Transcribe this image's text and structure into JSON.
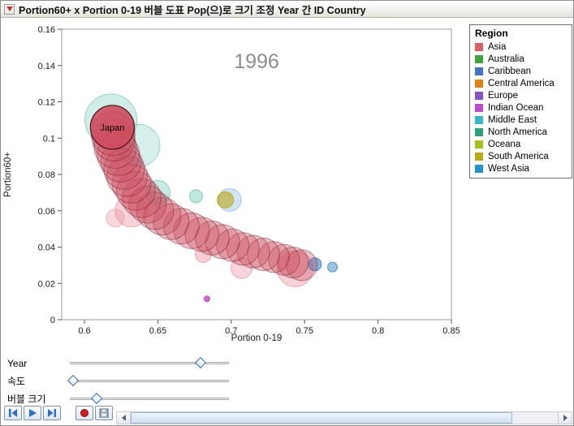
{
  "window": {
    "title": "Portion60+ x Portion 0-19 버블 도표 Pop(으)로 크기 조정 Year 간 ID Country"
  },
  "chart_data": {
    "type": "bubble",
    "year_label": "1996",
    "xlabel": "Portion 0-19",
    "ylabel": "Portion60+",
    "x_range": [
      0.5845,
      0.85
    ],
    "y_range": [
      0,
      0.16
    ],
    "x_ticks": [
      0.6,
      0.65,
      0.7,
      0.75,
      0.8,
      0.85
    ],
    "y_ticks": [
      0,
      0.02,
      0.04,
      0.06,
      0.08,
      0.1,
      0.12,
      0.14,
      0.16
    ],
    "trail": {
      "id": "Japan",
      "color": "#c9475a",
      "stroke": "#7a2233",
      "points": [
        [
          0.748,
          0.03,
          19
        ],
        [
          0.742,
          0.0315,
          19
        ],
        [
          0.736,
          0.033,
          19
        ],
        [
          0.729,
          0.0345,
          19
        ],
        [
          0.722,
          0.036,
          20
        ],
        [
          0.715,
          0.0375,
          20
        ],
        [
          0.708,
          0.039,
          20
        ],
        [
          0.701,
          0.041,
          20
        ],
        [
          0.694,
          0.043,
          21
        ],
        [
          0.687,
          0.045,
          21
        ],
        [
          0.68,
          0.047,
          21
        ],
        [
          0.673,
          0.049,
          22
        ],
        [
          0.666,
          0.0515,
          22
        ],
        [
          0.659,
          0.054,
          22
        ],
        [
          0.653,
          0.057,
          23
        ],
        [
          0.648,
          0.06,
          23
        ],
        [
          0.643,
          0.0635,
          23
        ],
        [
          0.639,
          0.067,
          24
        ],
        [
          0.635,
          0.071,
          24
        ],
        [
          0.632,
          0.075,
          24
        ],
        [
          0.629,
          0.079,
          25
        ],
        [
          0.627,
          0.083,
          25
        ],
        [
          0.625,
          0.087,
          25
        ],
        [
          0.623,
          0.091,
          26
        ],
        [
          0.621,
          0.095,
          26
        ],
        [
          0.62,
          0.099,
          26
        ],
        [
          0.6195,
          0.1025,
          27
        ]
      ]
    },
    "head": {
      "label": "Japan",
      "x": 0.619,
      "y": 0.106,
      "r": 27,
      "color": "#cf4a5c",
      "stroke": "#4a0f1c"
    },
    "bubbles": [
      {
        "x": 0.618,
        "y": 0.11,
        "r": 32,
        "color": "#49b8a6",
        "alpha": 0.25
      },
      {
        "x": 0.637,
        "y": 0.096,
        "r": 26,
        "color": "#49b8a6",
        "alpha": 0.22
      },
      {
        "x": 0.65,
        "y": 0.07,
        "r": 15,
        "color": "#49b8a6",
        "alpha": 0.3
      },
      {
        "x": 0.676,
        "y": 0.068,
        "r": 8,
        "color": "#49b8a6",
        "alpha": 0.35
      },
      {
        "x": 0.632,
        "y": 0.06,
        "r": 20,
        "color": "#e8909e",
        "alpha": 0.4
      },
      {
        "x": 0.621,
        "y": 0.056,
        "r": 11,
        "color": "#e8909e",
        "alpha": 0.35
      },
      {
        "x": 0.699,
        "y": 0.066,
        "r": 14,
        "color": "#7fb2e5",
        "alpha": 0.35
      },
      {
        "x": 0.696,
        "y": 0.066,
        "r": 10,
        "color": "#b9a915",
        "alpha": 0.6
      },
      {
        "x": 0.681,
        "y": 0.036,
        "r": 10,
        "color": "#e8909e",
        "alpha": 0.45
      },
      {
        "x": 0.707,
        "y": 0.0285,
        "r": 13,
        "color": "#e8909e",
        "alpha": 0.4
      },
      {
        "x": 0.7435,
        "y": 0.028,
        "r": 22,
        "color": "#e8909e",
        "alpha": 0.4
      },
      {
        "x": 0.757,
        "y": 0.0305,
        "r": 8,
        "color": "#3a86c8",
        "alpha": 0.6
      },
      {
        "x": 0.769,
        "y": 0.029,
        "r": 6,
        "color": "#3a86c8",
        "alpha": 0.5
      },
      {
        "x": 0.6835,
        "y": 0.0115,
        "r": 3.5,
        "color": "#c050c8",
        "alpha": 0.85
      }
    ]
  },
  "legend": {
    "title": "Region",
    "items": [
      {
        "label": "Asia",
        "color": "#dd5f63"
      },
      {
        "label": "Australia",
        "color": "#3fa23f"
      },
      {
        "label": "Caribbean",
        "color": "#4472c4"
      },
      {
        "label": "Central America",
        "color": "#e08214"
      },
      {
        "label": "Europe",
        "color": "#8950c8"
      },
      {
        "label": "Indian Ocean",
        "color": "#b84ecb"
      },
      {
        "label": "Middle East",
        "color": "#35b7c9"
      },
      {
        "label": "North America",
        "color": "#2f9e7d"
      },
      {
        "label": "Oceana",
        "color": "#a3c11d"
      },
      {
        "label": "South America",
        "color": "#b9a915"
      },
      {
        "label": "West Asia",
        "color": "#2492c8"
      }
    ]
  },
  "controls": {
    "sliders": [
      {
        "label": "Year",
        "value_pct": 82
      },
      {
        "label": "속도",
        "value_pct": 2
      },
      {
        "label": "버블 크기",
        "value_pct": 17
      }
    ],
    "buttons": [
      {
        "name": "step-back-button",
        "icon": "step-back-icon"
      },
      {
        "name": "play-button",
        "icon": "play-icon"
      },
      {
        "name": "step-forward-button",
        "icon": "step-forward-icon"
      },
      {
        "name": "record-button",
        "icon": "record-icon"
      },
      {
        "name": "save-button",
        "icon": "floppy-disk-icon"
      }
    ]
  }
}
